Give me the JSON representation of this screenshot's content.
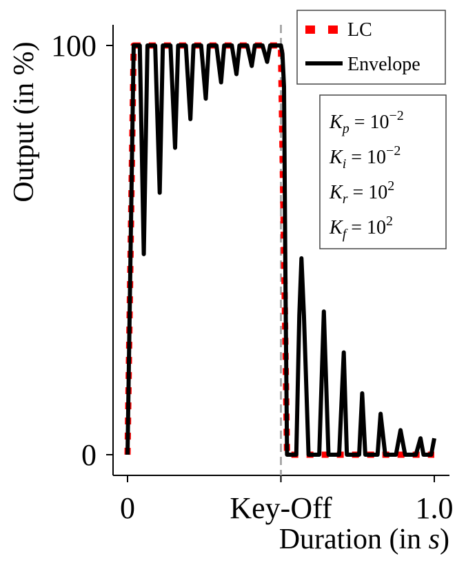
{
  "chart_data": {
    "type": "line",
    "xlabel": "Duration (in s)",
    "xlabel_prefix": "Duration (in ",
    "xlabel_var": "s",
    "xlabel_suffix": ")",
    "ylabel": "Output (in %)",
    "xlim": [
      -0.05,
      1.05
    ],
    "ylim": [
      -5,
      105
    ],
    "x_ticks": [
      {
        "value": 0,
        "label": "0"
      },
      {
        "value": 0.5,
        "label": "Key-Off"
      },
      {
        "value": 1.0,
        "label": "1.0"
      }
    ],
    "y_ticks": [
      {
        "value": 0,
        "label": "0"
      },
      {
        "value": 100,
        "label": "100"
      }
    ],
    "keyoff_x": 0.5,
    "grid": false,
    "legend_position": "top-right",
    "series": [
      {
        "name": "LC",
        "style": "dotted",
        "color": "#ff0000",
        "x": [
          0,
          0.02,
          0.5,
          0.52,
          1.0
        ],
        "y": [
          0,
          100,
          100,
          0,
          0
        ]
      },
      {
        "name": "Envelope",
        "style": "solid",
        "color": "#000000",
        "x": [
          0,
          0.02,
          0.025,
          0.04,
          0.053,
          0.065,
          0.075,
          0.09,
          0.105,
          0.115,
          0.125,
          0.14,
          0.155,
          0.165,
          0.175,
          0.19,
          0.205,
          0.215,
          0.225,
          0.24,
          0.255,
          0.265,
          0.275,
          0.29,
          0.305,
          0.315,
          0.325,
          0.34,
          0.355,
          0.365,
          0.375,
          0.39,
          0.405,
          0.415,
          0.425,
          0.44,
          0.455,
          0.465,
          0.475,
          0.49,
          0.5,
          0.505,
          0.51,
          0.515,
          0.52,
          0.53,
          0.54,
          0.55,
          0.56,
          0.567,
          0.575,
          0.59,
          0.605,
          0.615,
          0.625,
          0.64,
          0.655,
          0.665,
          0.675,
          0.69,
          0.705,
          0.715,
          0.725,
          0.74,
          0.755,
          0.765,
          0.775,
          0.79,
          0.805,
          0.815,
          0.825,
          0.84,
          0.855,
          0.865,
          0.875,
          0.89,
          0.905,
          0.915,
          0.925,
          0.94,
          0.955,
          0.965,
          0.975,
          0.99,
          1.0
        ],
        "y": [
          0,
          100,
          100,
          100,
          49,
          100,
          100,
          100,
          64,
          100,
          100,
          100,
          75,
          100,
          100,
          100,
          82,
          100,
          100,
          100,
          87,
          100,
          100,
          100,
          91,
          100,
          100,
          100,
          93,
          100,
          100,
          100,
          95,
          100,
          100,
          100,
          96,
          100,
          100,
          100,
          100,
          98,
          90,
          40,
          0,
          0,
          0,
          0,
          34,
          48,
          34,
          0,
          0,
          0,
          0,
          35,
          0,
          0,
          0,
          0,
          25,
          0,
          0,
          0,
          0,
          15,
          0,
          0,
          0,
          0,
          10,
          0,
          0,
          0,
          0,
          6,
          0,
          0,
          0,
          0,
          4,
          0,
          0,
          0,
          4
        ]
      }
    ],
    "legend": {
      "items": [
        {
          "label": "LC",
          "color": "#ff0000",
          "style": "dotted"
        },
        {
          "label": "Envelope",
          "color": "#000000",
          "style": "solid"
        }
      ]
    },
    "parameters": [
      {
        "symbol": "K",
        "sub": "p",
        "base": "10",
        "exp": "−2"
      },
      {
        "symbol": "K",
        "sub": "i",
        "base": "10",
        "exp": "−2"
      },
      {
        "symbol": "K",
        "sub": "r",
        "base": "10",
        "exp": "2"
      },
      {
        "symbol": "K",
        "sub": "f",
        "base": "10",
        "exp": "2"
      }
    ]
  }
}
